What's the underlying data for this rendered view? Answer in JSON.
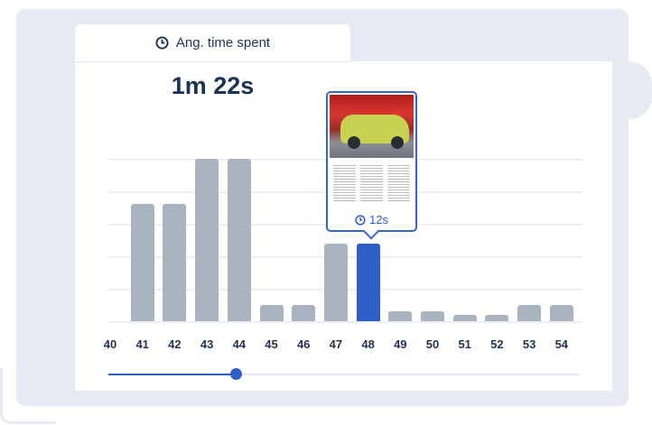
{
  "header": {
    "title": "Ang. time spent",
    "icon": "clock-icon",
    "total": "1m 22s"
  },
  "colors": {
    "accent": "#2f5fc9",
    "bar": "#a9b4c0",
    "text": "#1f3354",
    "background": "#e7eaf3"
  },
  "tooltip": {
    "time": "12s",
    "page": "48"
  },
  "slider": {
    "value": 0.27
  },
  "chart_data": {
    "type": "bar",
    "categories": [
      "40",
      "41",
      "42",
      "43",
      "44",
      "45",
      "46",
      "47",
      "48",
      "49",
      "50",
      "51",
      "52",
      "53",
      "54"
    ],
    "values": [
      null,
      18,
      18,
      25,
      25,
      2.5,
      2.5,
      12,
      12,
      1.5,
      1.5,
      1,
      1,
      2.5,
      2.5
    ],
    "selected": "48",
    "ylim": [
      0,
      25
    ],
    "grid": true,
    "xlabel": "",
    "ylabel": ""
  }
}
